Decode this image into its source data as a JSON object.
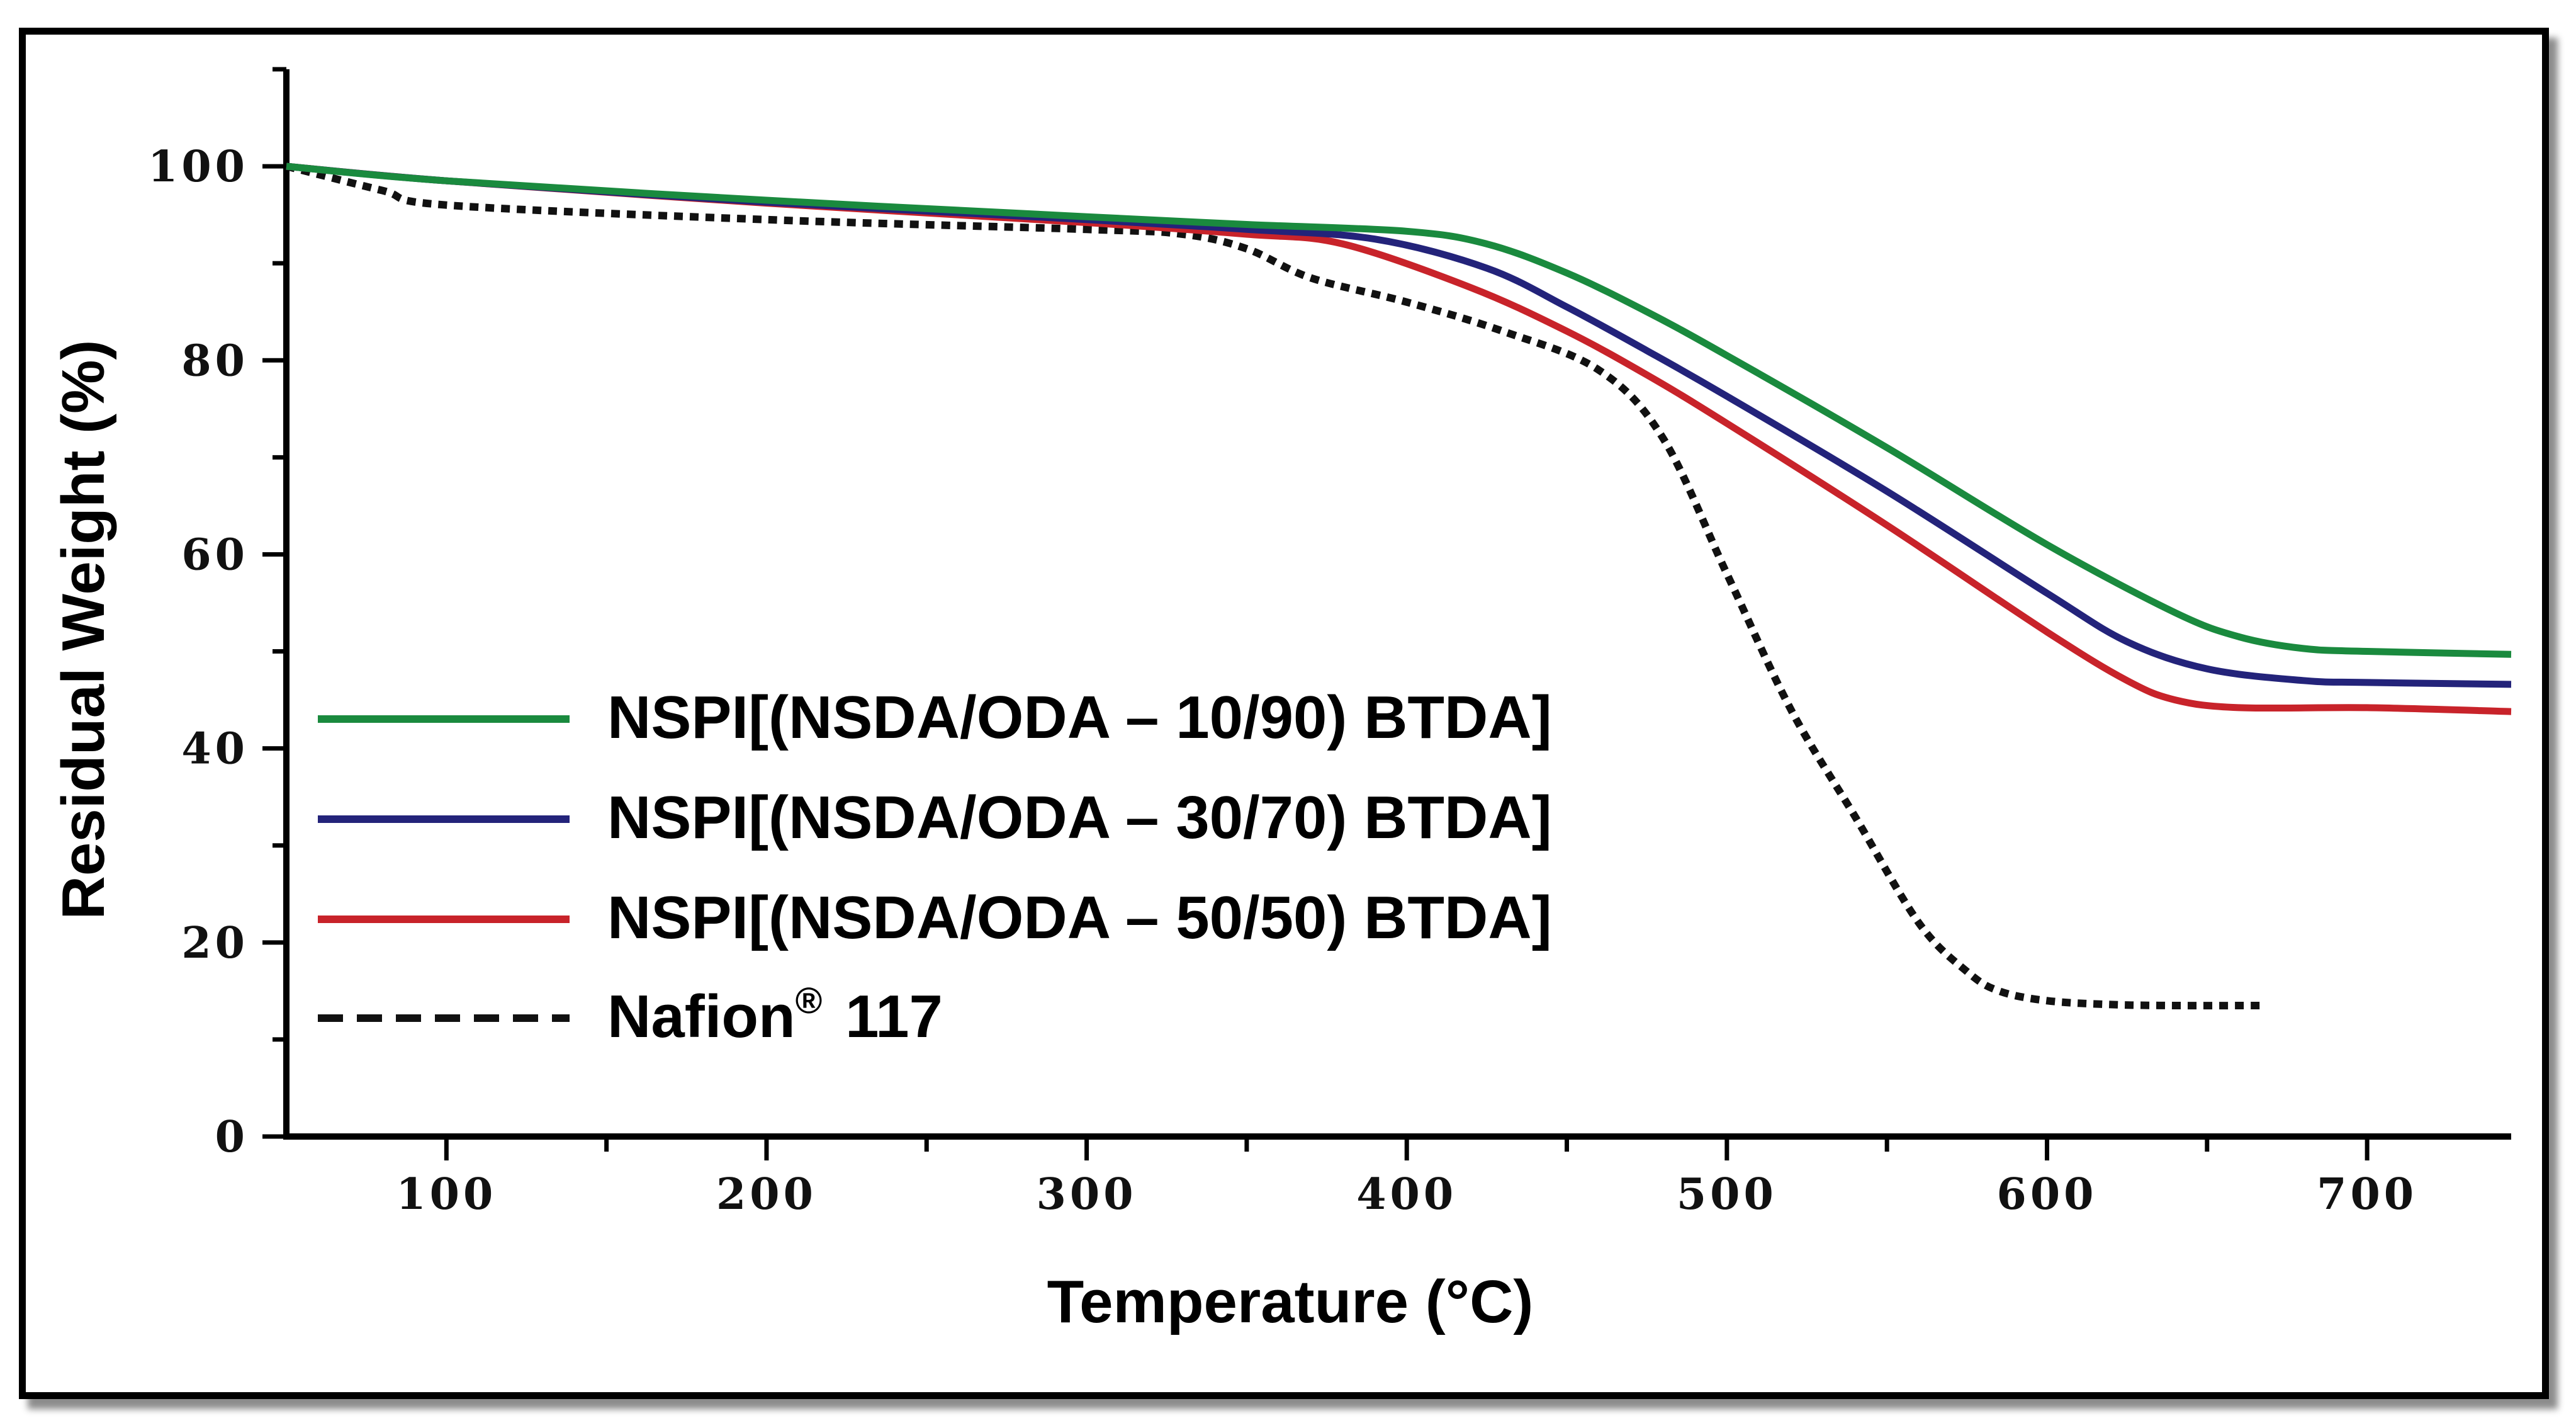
{
  "chart_data": {
    "type": "line",
    "title": "",
    "xlabel": "Temperature (°C)",
    "ylabel": "Residual Weight (%)",
    "xlim": [
      50,
      745
    ],
    "ylim": [
      0,
      110
    ],
    "xticks": [
      100,
      200,
      300,
      400,
      500,
      600,
      700
    ],
    "xtick_labels": [
      "100",
      "200",
      "300",
      "400",
      "500",
      "600",
      "700"
    ],
    "yticks": [
      0,
      20,
      40,
      60,
      80,
      100
    ],
    "ytick_labels": [
      "0",
      "20",
      "40",
      "60",
      "80",
      "100"
    ],
    "grid": false,
    "legend_position": "lower-left",
    "series": [
      {
        "name": "NSPI[(NSDA/ODA – 10/90) BTDA]",
        "color": "#1a8a3e",
        "style": "solid",
        "x": [
          50,
          100,
          200,
          300,
          350,
          400,
          425,
          450,
          475,
          500,
          550,
          600,
          640,
          660,
          680,
          700,
          745
        ],
        "y": [
          100,
          98.5,
          96.5,
          94.8,
          94,
          93.3,
          92,
          89,
          85,
          80.5,
          71,
          61,
          54,
          51.5,
          50.3,
          50,
          49.7
        ]
      },
      {
        "name": "NSPI[(NSDA/ODA – 30/70) BTDA]",
        "color": "#23237a",
        "style": "solid",
        "x": [
          50,
          100,
          200,
          300,
          350,
          390,
          425,
          450,
          475,
          500,
          550,
          600,
          625,
          650,
          680,
          700,
          745
        ],
        "y": [
          100,
          98.5,
          96.3,
          94.5,
          93.5,
          92.5,
          89.5,
          85.5,
          81,
          76.3,
          66.5,
          56,
          51,
          48.2,
          47,
          46.8,
          46.6
        ]
      },
      {
        "name": "NSPI[(NSDA/ODA – 50/50) BTDA]",
        "color": "#c8232a",
        "style": "solid",
        "x": [
          50,
          100,
          200,
          300,
          350,
          380,
          420,
          450,
          475,
          500,
          550,
          600,
          625,
          640,
          660,
          700,
          745
        ],
        "y": [
          100,
          98.5,
          96.2,
          94.2,
          93,
          92,
          87.5,
          83,
          78.5,
          73.5,
          63,
          52,
          47,
          45,
          44.2,
          44.2,
          43.8
        ]
      },
      {
        "name": "Nafion® 117",
        "color": "#111111",
        "style": "dashed",
        "x": [
          50,
          80,
          100,
          200,
          300,
          330,
          350,
          370,
          400,
          430,
          460,
          480,
          500,
          520,
          540,
          560,
          575,
          585,
          600,
          620,
          640,
          668
        ],
        "y": [
          100,
          97.5,
          96,
          94.5,
          93.5,
          93,
          91.5,
          88.5,
          86,
          83,
          79,
          72,
          58,
          44,
          33,
          22,
          17,
          15,
          14,
          13.6,
          13.5,
          13.5
        ]
      }
    ]
  }
}
